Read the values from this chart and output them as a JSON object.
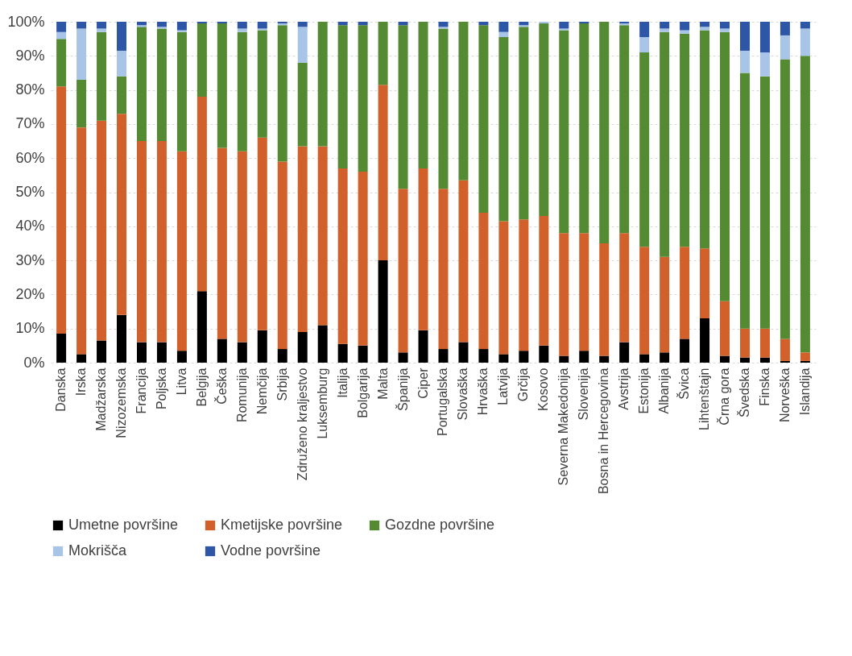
{
  "chart_data": {
    "type": "bar",
    "stacked": true,
    "categories": [
      "Danska",
      "Irska",
      "Madžarska",
      "Nizozemska",
      "Francija",
      "Poljska",
      "Litva",
      "Belgija",
      "Češka",
      "Romunija",
      "Nemčija",
      "Srbija",
      "Združeno kraljestvo",
      "Luksemburg",
      "Italija",
      "Bolgarija",
      "Malta",
      "Španija",
      "Ciper",
      "Portugalska",
      "Slovaška",
      "Hrvaška",
      "Latvija",
      "Grčija",
      "Kosovo",
      "Severna Makedonija",
      "Slovenija",
      "Bosna in Hercegovina",
      "Avstrija",
      "Estonija",
      "Albanija",
      "Švica",
      "Lihtenštajn",
      "Črna gora",
      "Švedska",
      "Finska",
      "Norveška",
      "Islandija"
    ],
    "series": [
      {
        "name": "Umetne površine",
        "color": "#000000",
        "values": [
          8.5,
          2.5,
          6.5,
          14,
          6,
          6,
          3.5,
          21,
          7,
          6,
          9.5,
          4,
          9,
          11,
          5.5,
          5,
          30,
          3,
          9.5,
          4,
          6,
          4,
          2.5,
          3.5,
          5,
          2,
          3.5,
          2,
          6,
          2.5,
          3,
          7,
          13,
          2,
          1.5,
          1.5,
          0.5,
          0.5
        ]
      },
      {
        "name": "Kmetijske površine",
        "color": "#d2602a",
        "values": [
          72.5,
          66.5,
          64.5,
          59,
          59,
          59,
          58.5,
          57,
          56,
          56,
          56.5,
          55,
          54.5,
          52.5,
          51.5,
          51,
          51.5,
          48,
          47.5,
          47,
          47.5,
          40,
          39,
          38.5,
          38,
          36,
          34.5,
          33,
          32,
          31.5,
          28,
          27,
          20.5,
          16,
          8.5,
          8.5,
          6.5,
          2.5
        ]
      },
      {
        "name": "Gozdne površine",
        "color": "#538a32",
        "values": [
          14,
          14,
          26,
          11,
          33.5,
          33,
          35,
          21.5,
          36.5,
          35,
          31.5,
          40,
          24.5,
          36.5,
          42,
          43,
          18.5,
          48,
          43,
          47,
          46.5,
          55,
          54,
          56.5,
          56.5,
          59.5,
          61.5,
          65,
          61,
          57,
          66,
          62.5,
          64,
          79,
          75,
          74,
          82,
          87
        ]
      },
      {
        "name": "Mokrišča",
        "color": "#a8c4e6",
        "values": [
          2,
          15,
          1,
          7.5,
          0.5,
          0.5,
          0.5,
          0,
          0,
          1,
          0.5,
          0.5,
          10.5,
          0,
          0,
          0,
          0,
          0,
          0,
          0.5,
          0,
          0,
          1.5,
          0.5,
          0.5,
          0.5,
          0,
          0,
          0.5,
          4.5,
          1,
          1,
          1,
          1,
          6.5,
          7,
          7,
          8
        ]
      },
      {
        "name": "Vodne površine",
        "color": "#2e56a6",
        "values": [
          3,
          2,
          2,
          8.5,
          1,
          1.5,
          2.5,
          0.5,
          0.5,
          2,
          2,
          0.5,
          1.5,
          0,
          1,
          1,
          0,
          1,
          0,
          1.5,
          0,
          1,
          3,
          1,
          0,
          2,
          0.5,
          0,
          0.5,
          4.5,
          2,
          2.5,
          1.5,
          2,
          8.5,
          9,
          4,
          2
        ]
      }
    ],
    "ylim": [
      0,
      100
    ],
    "yticks": [
      {
        "value": 0,
        "label": "0%"
      },
      {
        "value": 10,
        "label": "10%"
      },
      {
        "value": 20,
        "label": "20%"
      },
      {
        "value": 30,
        "label": "30%"
      },
      {
        "value": 40,
        "label": "40%"
      },
      {
        "value": 50,
        "label": "50%"
      },
      {
        "value": 60,
        "label": "60%"
      },
      {
        "value": 70,
        "label": "70%"
      },
      {
        "value": 80,
        "label": "80%"
      },
      {
        "value": 90,
        "label": "90%"
      },
      {
        "value": 100,
        "label": "100%"
      }
    ],
    "grid": "y",
    "legend": "bottom"
  }
}
